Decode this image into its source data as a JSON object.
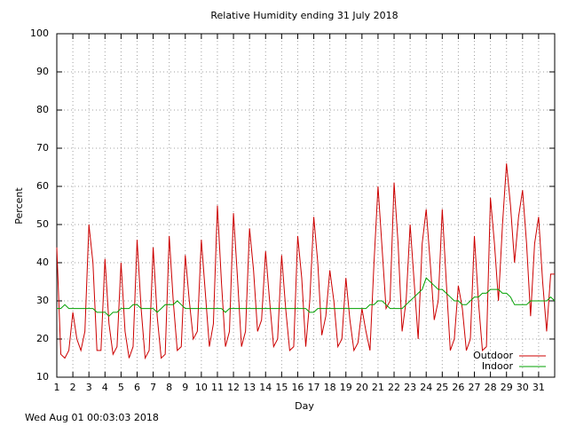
{
  "chart_data": {
    "type": "line",
    "title": "Relative Humidity ending 31 July 2018",
    "x_label": "Day",
    "y_label": "Percent",
    "footer": "Wed Aug 01 00:03:03 2018",
    "xlim": [
      1,
      32
    ],
    "ylim": [
      10,
      100
    ],
    "xticks": [
      1,
      2,
      3,
      4,
      5,
      6,
      7,
      8,
      9,
      10,
      11,
      12,
      13,
      14,
      15,
      16,
      17,
      18,
      19,
      20,
      21,
      22,
      23,
      24,
      25,
      26,
      27,
      28,
      29,
      30,
      31
    ],
    "yticks": [
      10,
      20,
      30,
      40,
      50,
      60,
      70,
      80,
      90,
      100
    ],
    "grid": true,
    "legend": "bottom-right",
    "x": [
      1,
      1.25,
      1.5,
      1.75,
      2,
      2.25,
      2.5,
      2.75,
      3,
      3.25,
      3.5,
      3.75,
      4,
      4.25,
      4.5,
      4.75,
      5,
      5.25,
      5.5,
      5.75,
      6,
      6.25,
      6.5,
      6.75,
      7,
      7.25,
      7.5,
      7.75,
      8,
      8.25,
      8.5,
      8.75,
      9,
      9.25,
      9.5,
      9.75,
      10,
      10.25,
      10.5,
      10.75,
      11,
      11.25,
      11.5,
      11.75,
      12,
      12.25,
      12.5,
      12.75,
      13,
      13.25,
      13.5,
      13.75,
      14,
      14.25,
      14.5,
      14.75,
      15,
      15.25,
      15.5,
      15.75,
      16,
      16.25,
      16.5,
      16.75,
      17,
      17.25,
      17.5,
      17.75,
      18,
      18.25,
      18.5,
      18.75,
      19,
      19.25,
      19.5,
      19.75,
      20,
      20.25,
      20.5,
      20.75,
      21,
      21.25,
      21.5,
      21.75,
      22,
      22.25,
      22.5,
      22.75,
      23,
      23.25,
      23.5,
      23.75,
      24,
      24.25,
      24.5,
      24.75,
      25,
      25.25,
      25.5,
      25.75,
      26,
      26.25,
      26.5,
      26.75,
      27,
      27.25,
      27.5,
      27.75,
      28,
      28.25,
      28.5,
      28.75,
      29,
      29.25,
      29.5,
      29.75,
      30,
      30.25,
      30.5,
      30.75,
      31,
      31.25,
      31.5,
      31.75,
      32
    ],
    "series": [
      {
        "name": "Outdoor",
        "color": "#cc0000",
        "values": [
          44,
          16,
          15,
          17,
          27,
          20,
          17,
          22,
          50,
          40,
          17,
          17,
          41,
          24,
          16,
          18,
          40,
          22,
          15,
          18,
          46,
          28,
          15,
          17,
          44,
          26,
          15,
          16,
          47,
          30,
          17,
          18,
          42,
          30,
          20,
          22,
          46,
          32,
          18,
          24,
          55,
          35,
          18,
          22,
          53,
          36,
          18,
          22,
          49,
          38,
          22,
          25,
          43,
          30,
          18,
          20,
          42,
          28,
          17,
          18,
          47,
          36,
          18,
          30,
          52,
          40,
          21,
          26,
          38,
          30,
          18,
          20,
          36,
          25,
          17,
          19,
          28,
          22,
          17,
          40,
          60,
          44,
          28,
          30,
          61,
          45,
          22,
          30,
          50,
          35,
          20,
          45,
          54,
          40,
          25,
          30,
          54,
          35,
          17,
          20,
          34,
          28,
          17,
          20,
          47,
          30,
          17,
          18,
          57,
          45,
          30,
          50,
          66,
          55,
          40,
          52,
          59,
          45,
          26,
          45,
          52,
          35,
          22,
          37,
          37
        ]
      },
      {
        "name": "Indoor",
        "color": "#00a000",
        "values": [
          28,
          28,
          29,
          28,
          28,
          28,
          28,
          28,
          28,
          28,
          27,
          27,
          27,
          26,
          27,
          27,
          28,
          28,
          28,
          29,
          29,
          28,
          28,
          28,
          28,
          27,
          28,
          29,
          29,
          29,
          30,
          29,
          28,
          28,
          28,
          28,
          28,
          28,
          28,
          28,
          28,
          28,
          27,
          28,
          28,
          28,
          28,
          28,
          28,
          28,
          28,
          28,
          28,
          28,
          28,
          28,
          28,
          28,
          28,
          28,
          28,
          28,
          28,
          27,
          27,
          28,
          28,
          28,
          28,
          28,
          28,
          28,
          28,
          28,
          28,
          28,
          28,
          28,
          29,
          29,
          30,
          30,
          29,
          28,
          28,
          28,
          28,
          29,
          30,
          31,
          32,
          33,
          36,
          35,
          34,
          33,
          33,
          32,
          31,
          30,
          30,
          29,
          29,
          30,
          31,
          31,
          32,
          32,
          33,
          33,
          33,
          32,
          32,
          31,
          29,
          29,
          29,
          29,
          30,
          30,
          30,
          30,
          30,
          31,
          30
        ]
      }
    ]
  }
}
